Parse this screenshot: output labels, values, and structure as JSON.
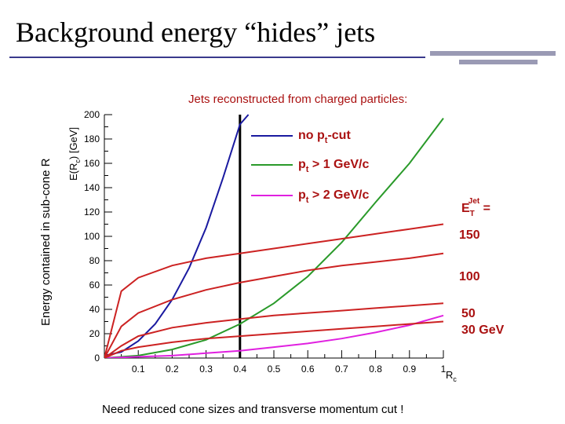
{
  "slide": {
    "title": "Background energy  “hides” jets",
    "footer": "Need reduced cone sizes and transverse momentum cut !",
    "outer_ylabel": "Energy contained in sub-cone R"
  },
  "colors": {
    "title_rule": "#3a3a8c",
    "deco": "#9a9ab4",
    "energy_curves": "#cc2222",
    "no_cut": "#1a1aa0",
    "pt1": "#2a9a2a",
    "pt2": "#e020e0",
    "text_red": "#aa1111",
    "marker_line": "#000000"
  },
  "chart_data": {
    "type": "line",
    "title": "Jets reconstructed from charged particles:",
    "ylabel_main": "E(R",
    "ylabel_sub": "c",
    "ylabel_tail": ")  [GeV]",
    "xlabel_main": "R",
    "xlabel_sub": "c",
    "xlim": [
      0.0,
      1.0
    ],
    "ylim": [
      0,
      200
    ],
    "xticks": [
      "0.1",
      "0.2",
      "0.3",
      "0.4",
      "0.5",
      "0.6",
      "0.7",
      "0.8",
      "0.9",
      "1"
    ],
    "yticks": [
      "0",
      "20",
      "40",
      "60",
      "80",
      "100",
      "120",
      "140",
      "160",
      "180",
      "200"
    ],
    "vertical_marker_x": 0.4,
    "legend": [
      {
        "pre": "no p",
        "sub": "t",
        "post": "-cut",
        "colorKey": "no_cut"
      },
      {
        "pre": "p",
        "sub": "t",
        "post": " >  1  GeV/c",
        "colorKey": "pt1"
      },
      {
        "pre": "p",
        "sub": "t",
        "post": " >  2  GeV/c",
        "colorKey": "pt2"
      }
    ],
    "et_label": {
      "pre": "E",
      "sub": "T",
      "sup": "Jet",
      "post": " ="
    },
    "energy_labels": [
      "150",
      "100",
      "50",
      "30  GeV"
    ],
    "series": [
      {
        "colorKey": "no_cut",
        "x": [
          0.0,
          0.05,
          0.1,
          0.15,
          0.2,
          0.25,
          0.3,
          0.35,
          0.4,
          0.425
        ],
        "y": [
          2,
          5,
          14,
          28,
          48,
          74,
          107,
          148,
          192,
          200
        ]
      },
      {
        "colorKey": "pt1",
        "x": [
          0.0,
          0.1,
          0.2,
          0.3,
          0.4,
          0.5,
          0.6,
          0.7,
          0.8,
          0.9,
          1.0
        ],
        "y": [
          0,
          2,
          7,
          15,
          28,
          45,
          67,
          95,
          128,
          160,
          197
        ]
      },
      {
        "colorKey": "pt2",
        "x": [
          0.0,
          0.1,
          0.2,
          0.3,
          0.4,
          0.5,
          0.6,
          0.7,
          0.8,
          0.9,
          1.0
        ],
        "y": [
          0,
          1,
          2,
          4,
          6,
          9,
          12,
          16,
          21,
          27,
          35
        ]
      },
      {
        "colorKey": "energy_curves",
        "x": [
          0.0,
          0.05,
          0.1,
          0.2,
          0.3,
          0.4,
          0.5,
          0.6,
          0.7,
          0.8,
          0.9,
          1.0
        ],
        "y": [
          0,
          55,
          66,
          76,
          82,
          86,
          90,
          94,
          98,
          102,
          106,
          110
        ]
      },
      {
        "colorKey": "energy_curves",
        "x": [
          0.0,
          0.05,
          0.1,
          0.2,
          0.3,
          0.4,
          0.5,
          0.6,
          0.7,
          0.8,
          0.9,
          1.0
        ],
        "y": [
          0,
          26,
          37,
          48,
          56,
          62,
          67,
          72,
          76,
          79,
          82,
          86
        ]
      },
      {
        "colorKey": "energy_curves",
        "x": [
          0.0,
          0.05,
          0.1,
          0.2,
          0.3,
          0.4,
          0.5,
          0.6,
          0.7,
          0.8,
          0.9,
          1.0
        ],
        "y": [
          0,
          10,
          18,
          25,
          29,
          32,
          35,
          37,
          39,
          41,
          43,
          45
        ]
      },
      {
        "colorKey": "energy_curves",
        "x": [
          0.0,
          0.05,
          0.1,
          0.2,
          0.3,
          0.4,
          0.5,
          0.6,
          0.7,
          0.8,
          0.9,
          1.0
        ],
        "y": [
          0,
          6,
          9,
          13,
          16,
          18,
          20,
          22,
          24,
          26,
          28,
          30
        ]
      }
    ]
  }
}
